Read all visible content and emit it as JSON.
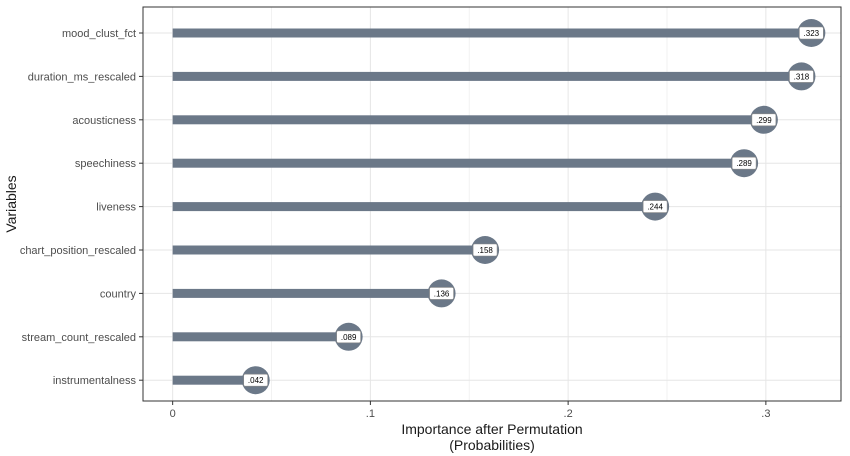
{
  "chart_data": {
    "type": "bar",
    "orientation": "horizontal",
    "style": "lollipop",
    "categories": [
      "mood_clust_fct",
      "duration_ms_rescaled",
      "acousticness",
      "speechiness",
      "liveness",
      "chart_position_rescaled",
      "country",
      "stream_count_rescaled",
      "instrumentalness"
    ],
    "values": [
      0.323,
      0.318,
      0.299,
      0.289,
      0.244,
      0.158,
      0.136,
      0.089,
      0.042
    ],
    "value_labels": [
      ".323",
      ".318",
      ".299",
      ".289",
      ".244",
      ".158",
      ".136",
      ".089",
      ".042"
    ],
    "x_ticks": [
      0,
      0.1,
      0.2,
      0.3
    ],
    "x_tick_labels": [
      "0",
      ".1",
      ".2",
      ".3"
    ],
    "xlabel": [
      "Importance after Permutation",
      "(Probabilities)"
    ],
    "ylabel": "Variables",
    "xlim": [
      -0.015,
      0.338
    ],
    "grid": true,
    "legend": "none",
    "colors": {
      "bar": "#6b7888",
      "panel_border": "#333333",
      "grid_major": "#e6e6e6",
      "grid_minor": "#f2f2f2"
    }
  }
}
